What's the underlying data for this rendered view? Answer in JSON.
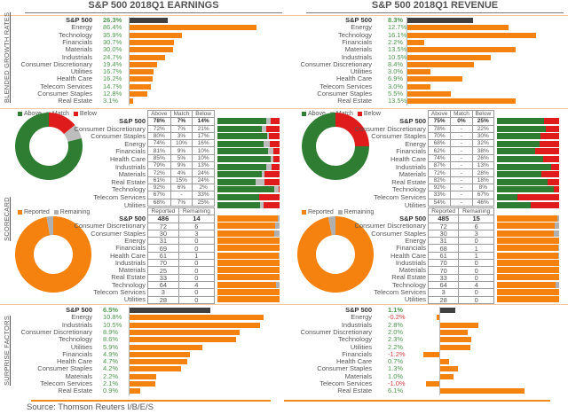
{
  "colors": {
    "orange": "#f5820f",
    "dark_bar": "#404040",
    "above": "#2f7d32",
    "match": "#bdbdbd",
    "below": "#e01b1b",
    "remaining": "#b0b0b0",
    "positive_text": "#4e9a4e",
    "negative_text": "#d24040"
  },
  "section_labels": {
    "growth": "BLENDED GROWTH RATES",
    "scorecard": "SCORECARD",
    "surprise": "SURPRISE FACTORS"
  },
  "source": "Source: Thomson Reuters I/B/E/S",
  "chart_data": [
    {
      "id": "earnings_growth",
      "type": "bar",
      "orientation": "horizontal",
      "title": "S&P 500 2018Q1 EARNINGS",
      "section": "BLENDED GROWTH RATES",
      "categories": [
        "S&P 500",
        "Energy",
        "Technology",
        "Financials",
        "Materials",
        "Industrials",
        "Consumer Discretionary",
        "Utilities",
        "Health Care",
        "Telecom Services",
        "Consumer Staples",
        "Real Estate"
      ],
      "values": [
        26.3,
        86.4,
        35.9,
        30.7,
        30.0,
        24.7,
        19.4,
        16.7,
        16.2,
        14.7,
        12.8,
        3.1
      ],
      "labels": [
        "26.3%",
        "86.4%",
        "35.9%",
        "30.7%",
        "30.0%",
        "24.7%",
        "19.4%",
        "16.7%",
        "16.2%",
        "14.7%",
        "12.8%",
        "3.1%"
      ],
      "xlim": [
        0,
        90
      ]
    },
    {
      "id": "revenue_growth",
      "type": "bar",
      "orientation": "horizontal",
      "title": "S&P 500 2018Q1 REVENUE",
      "section": "BLENDED GROWTH RATES",
      "categories": [
        "S&P 500",
        "Energy",
        "Technology",
        "Financials",
        "Materials",
        "Industrials",
        "Consumer Discretionary",
        "Utilities",
        "Health Care",
        "Telecom Services",
        "Consumer Staples",
        "Real Estate"
      ],
      "values": [
        8.3,
        12.7,
        16.1,
        2.2,
        13.5,
        10.5,
        8.4,
        3.0,
        6.9,
        3.0,
        5.5,
        13.5
      ],
      "labels": [
        "8.3%",
        "12.7%",
        "16.1%",
        "2.2%",
        "13.5%",
        "10.5%",
        "8.4%",
        "3.0%",
        "6.9%",
        "3.0%",
        "5.5%",
        "13.5%"
      ],
      "xlim": [
        0,
        16.5
      ]
    },
    {
      "id": "earnings_scorecard",
      "type": "table",
      "section": "SCORECARD",
      "legend": [
        "Above",
        "Match",
        "Below"
      ],
      "columns": [
        "Above",
        "Match",
        "Below"
      ],
      "categories": [
        "S&P 500",
        "Consumer Discretionary",
        "Consumer Staples",
        "Energy",
        "Financials",
        "Health Care",
        "Industrials",
        "Materials",
        "Real Estate",
        "Technology",
        "Telecom Services",
        "Utilities"
      ],
      "rows": [
        [
          "78%",
          "7%",
          "14%"
        ],
        [
          "72%",
          "7%",
          "21%"
        ],
        [
          "80%",
          "3%",
          "17%"
        ],
        [
          "74%",
          "10%",
          "16%"
        ],
        [
          "81%",
          "9%",
          "10%"
        ],
        [
          "85%",
          "5%",
          "10%"
        ],
        [
          "79%",
          "9%",
          "13%"
        ],
        [
          "72%",
          "4%",
          "24%"
        ],
        [
          "61%",
          "15%",
          "24%"
        ],
        [
          "92%",
          "6%",
          "2%"
        ],
        [
          "67%",
          "-",
          "33%"
        ],
        [
          "68%",
          "7%",
          "25%"
        ]
      ],
      "series": [
        {
          "name": "Above",
          "values": [
            78,
            72,
            80,
            74,
            81,
            85,
            79,
            72,
            61,
            92,
            67,
            68
          ]
        },
        {
          "name": "Match",
          "values": [
            7,
            7,
            3,
            10,
            9,
            5,
            9,
            4,
            15,
            6,
            0,
            7
          ]
        },
        {
          "name": "Below",
          "values": [
            14,
            21,
            17,
            16,
            10,
            10,
            13,
            24,
            24,
            2,
            33,
            25
          ]
        }
      ],
      "donut": {
        "Above": 78,
        "Match": 7,
        "Below": 14
      }
    },
    {
      "id": "revenue_scorecard",
      "type": "table",
      "section": "SCORECARD",
      "legend": [
        "Above",
        "Match",
        "Below"
      ],
      "columns": [
        "Above",
        "Match",
        "Below"
      ],
      "categories": [
        "S&P 500",
        "Consumer Discretionary",
        "Consumer Staples",
        "Energy",
        "Financials",
        "Health Care",
        "Industrials",
        "Materials",
        "Real Estate",
        "Technology",
        "Telecom Services",
        "Utilities"
      ],
      "rows": [
        [
          "75%",
          "0%",
          "25%"
        ],
        [
          "78%",
          "-",
          "22%"
        ],
        [
          "70%",
          "-",
          "30%"
        ],
        [
          "68%",
          "-",
          "32%"
        ],
        [
          "62%",
          "-",
          "38%"
        ],
        [
          "74%",
          "-",
          "26%"
        ],
        [
          "87%",
          "-",
          "13%"
        ],
        [
          "72%",
          "-",
          "28%"
        ],
        [
          "82%",
          "-",
          "18%"
        ],
        [
          "92%",
          "-",
          "8%"
        ],
        [
          "33%",
          "-",
          "67%"
        ],
        [
          "54%",
          "-",
          "46%"
        ]
      ],
      "series": [
        {
          "name": "Above",
          "values": [
            75,
            78,
            70,
            68,
            62,
            74,
            87,
            72,
            82,
            92,
            33,
            54
          ]
        },
        {
          "name": "Match",
          "values": [
            0,
            0,
            0,
            0,
            0,
            0,
            0,
            0,
            0,
            0,
            0,
            0
          ]
        },
        {
          "name": "Below",
          "values": [
            25,
            22,
            30,
            32,
            38,
            26,
            13,
            28,
            18,
            8,
            67,
            46
          ]
        }
      ],
      "donut": {
        "Above": 75,
        "Match": 0,
        "Below": 25
      }
    },
    {
      "id": "earnings_reported",
      "type": "table",
      "section": "SCORECARD",
      "legend": [
        "Reported",
        "Remaining"
      ],
      "columns": [
        "Reported",
        "Remaining"
      ],
      "categories": [
        "S&P 500",
        "Consumer Discretionary",
        "Consumer Staples",
        "Energy",
        "Financials",
        "Health Care",
        "Industrials",
        "Materials",
        "Real Estate",
        "Technology",
        "Telecom Services",
        "Utilities"
      ],
      "rows": [
        [
          "486",
          "14"
        ],
        [
          "72",
          "6"
        ],
        [
          "30",
          "3"
        ],
        [
          "31",
          "0"
        ],
        [
          "69",
          "0"
        ],
        [
          "61",
          "1"
        ],
        [
          "70",
          "0"
        ],
        [
          "25",
          "0"
        ],
        [
          "33",
          "0"
        ],
        [
          "64",
          "4"
        ],
        [
          "3",
          "0"
        ],
        [
          "28",
          "0"
        ]
      ],
      "series": [
        {
          "name": "Reported",
          "values": [
            486,
            72,
            30,
            31,
            69,
            61,
            70,
            25,
            33,
            64,
            3,
            28
          ]
        },
        {
          "name": "Remaining",
          "values": [
            14,
            6,
            3,
            0,
            0,
            1,
            0,
            0,
            0,
            4,
            0,
            0
          ]
        }
      ],
      "donut": {
        "Reported": 486,
        "Remaining": 14
      }
    },
    {
      "id": "revenue_reported",
      "type": "table",
      "section": "SCORECARD",
      "legend": [
        "Reported",
        "Remaining"
      ],
      "columns": [
        "Reported",
        "Remaining"
      ],
      "categories": [
        "S&P 500",
        "Consumer Discretionary",
        "Consumer Staples",
        "Energy",
        "Financials",
        "Health Care",
        "Industrials",
        "Materials",
        "Real Estate",
        "Technology",
        "Telecom Services",
        "Utilities"
      ],
      "rows": [
        [
          "485",
          "15"
        ],
        [
          "72",
          "6"
        ],
        [
          "30",
          "3"
        ],
        [
          "31",
          "0"
        ],
        [
          "68",
          "1"
        ],
        [
          "61",
          "1"
        ],
        [
          "70",
          "0"
        ],
        [
          "70",
          "0"
        ],
        [
          "33",
          "0"
        ],
        [
          "64",
          "4"
        ],
        [
          "3",
          "0"
        ],
        [
          "28",
          "0"
        ]
      ],
      "series": [
        {
          "name": "Reported",
          "values": [
            485,
            72,
            30,
            31,
            68,
            61,
            70,
            70,
            33,
            64,
            3,
            28
          ]
        },
        {
          "name": "Remaining",
          "values": [
            15,
            6,
            3,
            0,
            1,
            1,
            0,
            0,
            0,
            4,
            0,
            0
          ]
        }
      ],
      "donut": {
        "Reported": 485,
        "Remaining": 15
      }
    },
    {
      "id": "earnings_surprise",
      "type": "bar",
      "orientation": "horizontal",
      "section": "SURPRISE FACTORS",
      "categories": [
        "S&P 500",
        "Energy",
        "Industrials",
        "Consumer Discretionary",
        "Technology",
        "Utilities",
        "Financials",
        "Health Care",
        "Consumer Staples",
        "Materials",
        "Telecom Services",
        "Real Estate"
      ],
      "values": [
        6.5,
        10.8,
        10.5,
        8.9,
        8.6,
        5.9,
        4.9,
        4.7,
        4.2,
        2.2,
        2.1,
        0.9
      ],
      "labels": [
        "6.5%",
        "10.8%",
        "10.5%",
        "8.9%",
        "8.6%",
        "5.9%",
        "4.9%",
        "4.7%",
        "4.2%",
        "2.2%",
        "2.1%",
        "0.9%"
      ],
      "xlim": [
        0,
        11
      ]
    },
    {
      "id": "revenue_surprise",
      "type": "bar",
      "orientation": "horizontal",
      "section": "SURPRISE FACTORS",
      "categories": [
        "S&P 500",
        "Energy",
        "Industrials",
        "Consumer Discretionary",
        "Technology",
        "Utilities",
        "Financials",
        "Health Care",
        "Consumer Staples",
        "Materials",
        "Telecom Services",
        "Real Estate"
      ],
      "values": [
        1.1,
        -0.2,
        2.8,
        2.0,
        2.3,
        2.2,
        -1.2,
        0.7,
        1.3,
        1.0,
        -1.0,
        6.1
      ],
      "labels": [
        "1.1%",
        "-0.2%",
        "2.8%",
        "2.0%",
        "2.3%",
        "2.2%",
        "-1.2%",
        "0.7%",
        "1.3%",
        "1.0%",
        "-1.0%",
        "6.1%"
      ],
      "xlim": [
        -1.5,
        6.5
      ]
    }
  ]
}
